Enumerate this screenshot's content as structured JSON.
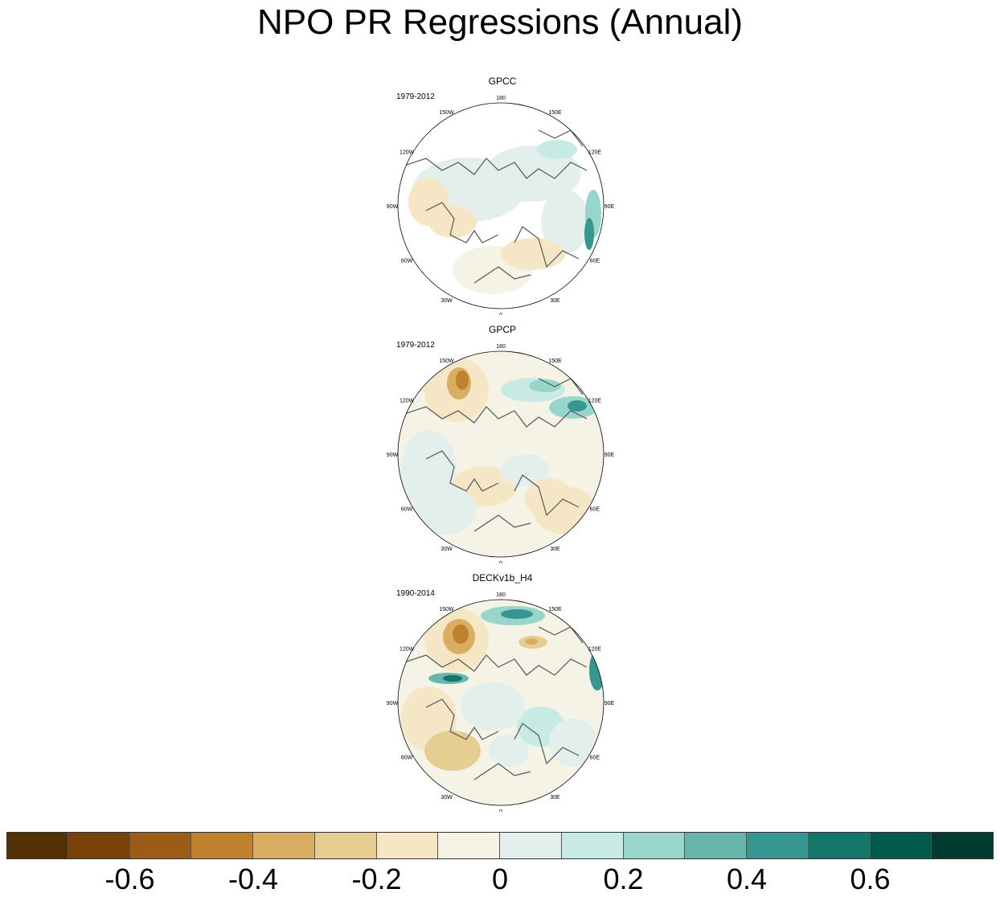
{
  "title": "NPO PR Regressions (Annual)",
  "panels": [
    {
      "name": "GPCC",
      "period": "1979-2012"
    },
    {
      "name": "GPCP",
      "period": "1979-2012"
    },
    {
      "name": "DECKv1b_H4",
      "period": "1990-2014"
    }
  ],
  "longitude_labels": {
    "top": "180",
    "bottom": "0",
    "lon150W": "150W",
    "lon150E": "150E",
    "lon120W": "120W",
    "lon120E": "120E",
    "lon90W": "90W",
    "lon90E": "90E",
    "lon60W": "60W",
    "lon60E": "60E",
    "lon30W": "30W",
    "lon30E": "30E"
  },
  "colorbar": {
    "colors": [
      "#543005",
      "#7a4209",
      "#9a5c17",
      "#bf812d",
      "#d7ae62",
      "#e6cd92",
      "#f5e7c6",
      "#f5f2e6",
      "#e3efec",
      "#c7eae5",
      "#98d6cb",
      "#67b5ab",
      "#35978f",
      "#137668",
      "#015b4c",
      "#003c30"
    ],
    "labels": [
      "-0.6",
      "-0.4",
      "-0.2",
      "0",
      "0.2",
      "0.4",
      "0.6"
    ]
  }
}
